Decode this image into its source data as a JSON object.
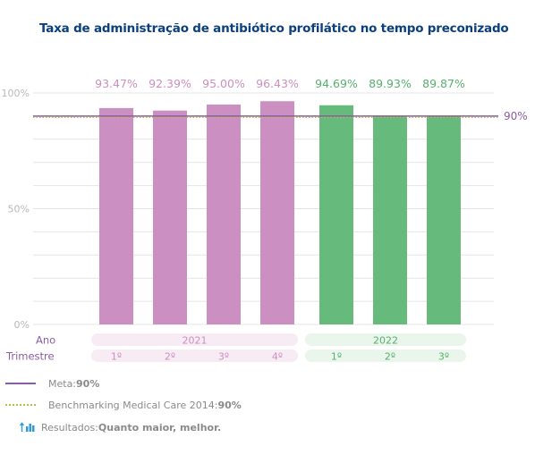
{
  "title": "Taxa de administração de antibiótico profilático no tempo preconizado",
  "chart_data": {
    "type": "bar",
    "y_ticks": [
      "100%",
      "50%",
      "0%"
    ],
    "ylim": [
      0,
      100
    ],
    "grid": true,
    "series": [
      {
        "year": "2021",
        "color": "#cc8fc1",
        "label_color": "#cc8fc1",
        "band_color": "#f7ebf4",
        "categories": [
          "1º",
          "2º",
          "3º",
          "4º"
        ],
        "values": [
          93.47,
          92.39,
          95.0,
          96.43
        ],
        "labels": [
          "93.47%",
          "92.39%",
          "95.00%",
          "96.43%"
        ]
      },
      {
        "year": "2022",
        "color": "#66ba7b",
        "label_color": "#55b06c",
        "band_color": "#eaf6ec",
        "categories": [
          "1º",
          "2º",
          "3º"
        ],
        "values": [
          94.69,
          89.93,
          89.87
        ],
        "labels": [
          "94.69%",
          "89.93%",
          "89.87%"
        ]
      }
    ],
    "reference_line": {
      "value": 90,
      "label": "90%",
      "color": "#8a5ca3"
    },
    "row_labels": {
      "year": "Ano",
      "quarter": "Trimestre"
    }
  },
  "legend": {
    "meta_text": "Meta: ",
    "meta_value": "90%",
    "benchmark_text": "Benchmarking Medical Care 2014: ",
    "benchmark_value": "90%",
    "results_text": "Resultados: ",
    "results_value": "Quanto maior, melhor.",
    "meta_color": "#8a5ca3",
    "benchmark_color": "#b5bf4d",
    "results_icon": "bar-chart-up-icon",
    "results_icon_color": "#2c9bd6"
  }
}
